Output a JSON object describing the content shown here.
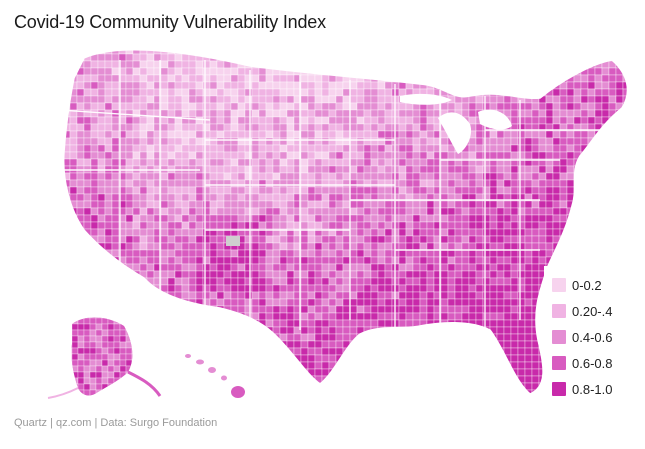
{
  "title": "Covid-19 Community Vulnerability Index",
  "footer": "Quartz | qz.com | Data: Surgo Foundation",
  "legend": [
    {
      "label": "0-0.2",
      "color": "#f7d3ee"
    },
    {
      "label": "0.20-.4",
      "color": "#f0b3e3"
    },
    {
      "label": "0.4-0.6",
      "color": "#e48dd3"
    },
    {
      "label": "0.6-0.8",
      "color": "#d85bc0"
    },
    {
      "label": "0.8-1.0",
      "color": "#c82aaa"
    }
  ],
  "no_data_color": "#cfcfcf"
}
